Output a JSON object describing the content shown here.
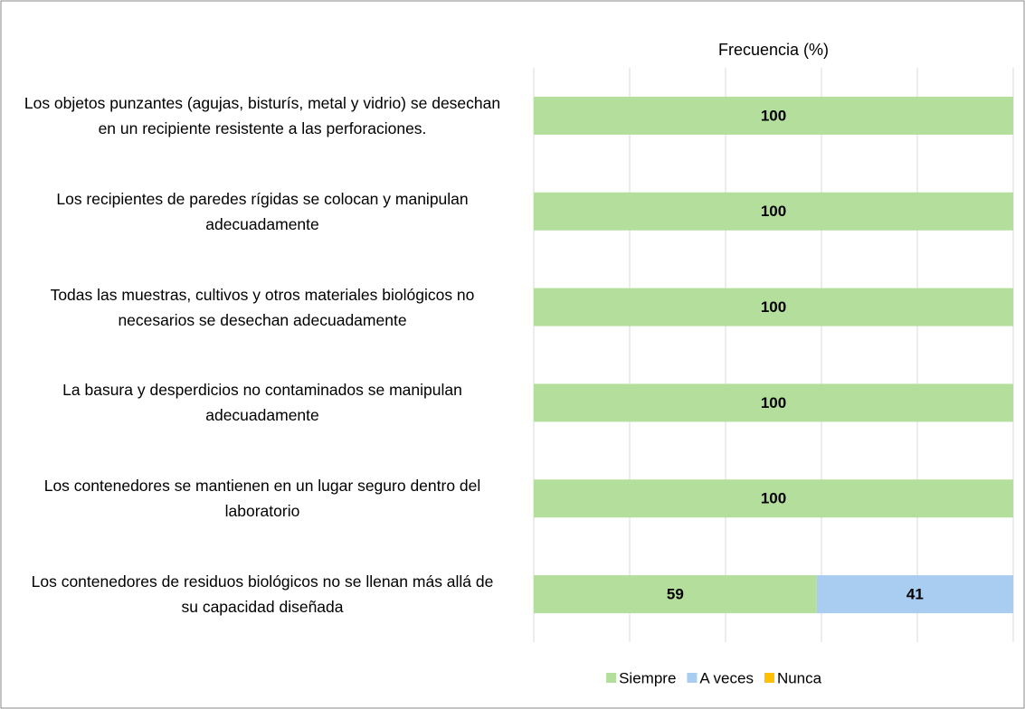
{
  "chart_data": {
    "type": "stacked_bar_horizontal",
    "title": "Frecuencia (%)",
    "categories": [
      "Los objetos punzantes (agujas, bisturís, metal y vidrio) se desechan  en un recipiente resistente a las perforaciones.",
      "Los recipientes de paredes rígidas se colocan y manipulan adecuadamente",
      "Todas las muestras, cultivos y otros materiales biológicos no necesarios se desechan adecuadamente",
      "La basura y desperdicios no contaminados se manipulan adecuadamente",
      "Los contenedores se mantienen en un lugar seguro dentro del laboratorio",
      "Los contenedores de residuos biológicos no se llenan más allá de su capacidad diseñada"
    ],
    "series": [
      {
        "name": "Siempre",
        "color": "#b4de9c",
        "values": [
          100,
          100,
          100,
          100,
          100,
          59
        ]
      },
      {
        "name": "A veces",
        "color": "#a9cdf1",
        "values": [
          0,
          0,
          0,
          0,
          0,
          41
        ]
      },
      {
        "name": "Nunca",
        "color": "#ffc000",
        "values": [
          0,
          0,
          0,
          0,
          0,
          0
        ]
      }
    ],
    "xlim": [
      0,
      100
    ],
    "xticks": [
      0,
      20,
      40,
      60,
      80,
      100
    ],
    "tick_labels": false,
    "grid": true,
    "legend": "bottom"
  }
}
